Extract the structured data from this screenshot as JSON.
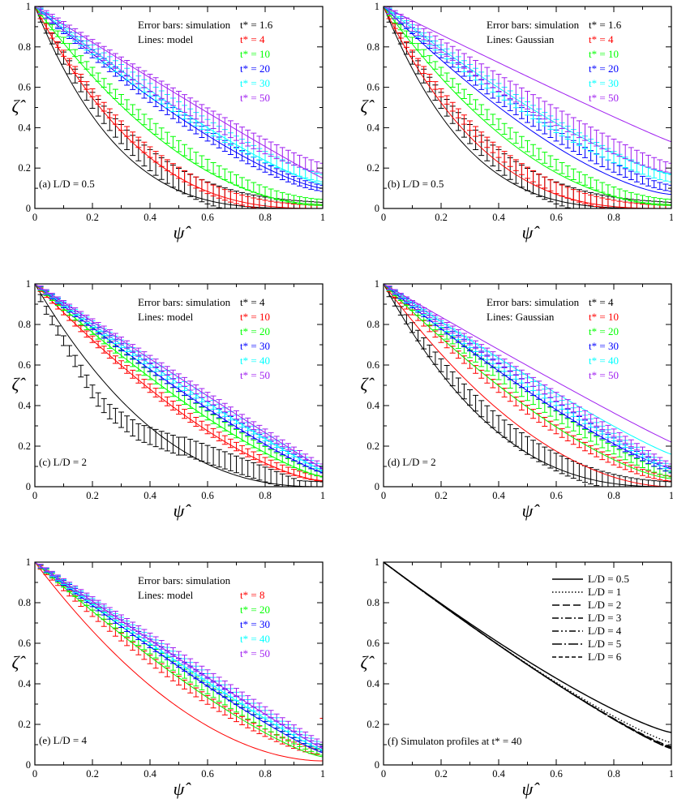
{
  "colors": {
    "black": "#000000",
    "red": "#ff0000",
    "green": "#00ff00",
    "blue": "#0000ff",
    "cyan": "#00ffff",
    "violet": "#a020f0"
  },
  "chart_data": [
    {
      "type": "line",
      "panel_label": "(a) L/D = 0.5",
      "legend_header": [
        "Error bars: simulation",
        "Lines: model"
      ],
      "xlabel": "ψ̂",
      "ylabel": "ζ̂",
      "xlim": [
        0,
        1
      ],
      "ylim": [
        0,
        1
      ],
      "xticks": [
        "0",
        "0.2",
        "0.4",
        "0.6",
        "0.8",
        "1"
      ],
      "yticks": [
        "0",
        "0.2",
        "0.4",
        "0.6",
        "0.8",
        "1"
      ],
      "series": [
        {
          "name": "t* = 1.6",
          "color": "black",
          "line_end": 0.0,
          "line_exp": 3.5,
          "sim_end": 0.0,
          "sim_exp": 2.8,
          "err": 0.05
        },
        {
          "name": "t* = 4",
          "color": "red",
          "line_end": 0.0,
          "line_exp": 2.7,
          "sim_end": 0.0,
          "sim_exp": 2.5,
          "err": 0.025
        },
        {
          "name": "t* = 10",
          "color": "green",
          "line_end": 0.02,
          "line_exp": 1.95,
          "sim_end": 0.03,
          "sim_exp": 1.8,
          "err": 0.025
        },
        {
          "name": "t* = 20",
          "color": "blue",
          "line_end": 0.1,
          "line_exp": 1.35,
          "sim_end": 0.1,
          "sim_exp": 1.35,
          "err": 0.025
        },
        {
          "name": "t* = 30",
          "color": "cyan",
          "line_end": 0.12,
          "line_exp": 1.25,
          "sim_end": 0.15,
          "sim_exp": 1.3,
          "err": 0.03
        },
        {
          "name": "t* = 50",
          "color": "violet",
          "line_end": 0.15,
          "line_exp": 1.05,
          "sim_end": 0.2,
          "sim_exp": 1.25,
          "err": 0.04
        }
      ]
    },
    {
      "type": "line",
      "panel_label": "(b) L/D = 0.5",
      "legend_header": [
        "Error bars: simulation",
        "Lines: Gaussian"
      ],
      "xlabel": "ψ̂",
      "ylabel": "ζ̂",
      "xlim": [
        0,
        1
      ],
      "ylim": [
        0,
        1
      ],
      "xticks": [
        "0",
        "0.2",
        "0.4",
        "0.6",
        "0.8",
        "1"
      ],
      "yticks": [
        "0",
        "0.2",
        "0.4",
        "0.6",
        "0.8",
        "1"
      ],
      "series": [
        {
          "name": "t* = 1.6",
          "color": "black",
          "line_end": 0.0,
          "line_exp": 3.5,
          "sim_end": 0.0,
          "sim_exp": 2.8,
          "err": 0.05
        },
        {
          "name": "t* = 4",
          "color": "red",
          "line_end": 0.0,
          "line_exp": 2.9,
          "sim_end": 0.0,
          "sim_exp": 2.5,
          "err": 0.025
        },
        {
          "name": "t* = 10",
          "color": "green",
          "line_end": 0.02,
          "line_exp": 2.0,
          "sim_end": 0.03,
          "sim_exp": 1.8,
          "err": 0.025
        },
        {
          "name": "t* = 20",
          "color": "blue",
          "line_end": 0.07,
          "line_exp": 1.5,
          "sim_end": 0.1,
          "sim_exp": 1.35,
          "err": 0.025
        },
        {
          "name": "t* = 30",
          "color": "cyan",
          "line_end": 0.17,
          "line_exp": 1.3,
          "sim_end": 0.15,
          "sim_exp": 1.3,
          "err": 0.03
        },
        {
          "name": "t* = 50",
          "color": "violet",
          "line_end": 0.33,
          "line_exp": 1.05,
          "sim_end": 0.2,
          "sim_exp": 1.25,
          "err": 0.04
        }
      ]
    },
    {
      "type": "line",
      "panel_label": "(c) L/D = 2",
      "legend_header": [
        "Error bars: simulation",
        "Lines: model"
      ],
      "xlabel": "ψ̂",
      "ylabel": "ζ̂",
      "xlim": [
        0,
        1
      ],
      "ylim": [
        0,
        1
      ],
      "xticks": [
        "0",
        "0.2",
        "0.4",
        "0.6",
        "0.8",
        "1"
      ],
      "yticks": [
        "0",
        "0.2",
        "0.4",
        "0.6",
        "0.8",
        "1"
      ],
      "series": [
        {
          "name": "t* = 4",
          "color": "black",
          "line_end": 0.0,
          "line_exp": 2.4,
          "sim_end": 0.0,
          "sim_exp": 2.3,
          "err": 0.04,
          "sim_points": [
            [
              0.0,
              1.0
            ],
            [
              0.02,
              0.93
            ],
            [
              0.04,
              0.87
            ],
            [
              0.06,
              0.82
            ],
            [
              0.08,
              0.77
            ],
            [
              0.1,
              0.72
            ],
            [
              0.12,
              0.67
            ],
            [
              0.14,
              0.62
            ],
            [
              0.16,
              0.57
            ],
            [
              0.18,
              0.52
            ],
            [
              0.2,
              0.47
            ],
            [
              0.22,
              0.43
            ],
            [
              0.24,
              0.4
            ],
            [
              0.26,
              0.37
            ],
            [
              0.28,
              0.35
            ],
            [
              0.3,
              0.33
            ],
            [
              0.32,
              0.31
            ],
            [
              0.34,
              0.29
            ],
            [
              0.36,
              0.27
            ],
            [
              0.38,
              0.26
            ],
            [
              0.4,
              0.25
            ],
            [
              0.42,
              0.24
            ],
            [
              0.44,
              0.23
            ],
            [
              0.46,
              0.22
            ],
            [
              0.48,
              0.21
            ],
            [
              0.5,
              0.2
            ],
            [
              0.52,
              0.2
            ],
            [
              0.54,
              0.19
            ],
            [
              0.56,
              0.18
            ],
            [
              0.58,
              0.17
            ],
            [
              0.6,
              0.16
            ],
            [
              0.62,
              0.15
            ],
            [
              0.64,
              0.14
            ],
            [
              0.66,
              0.13
            ],
            [
              0.68,
              0.12
            ],
            [
              0.7,
              0.11
            ],
            [
              0.72,
              0.1
            ],
            [
              0.74,
              0.09
            ],
            [
              0.76,
              0.08
            ],
            [
              0.78,
              0.07
            ],
            [
              0.8,
              0.06
            ],
            [
              0.82,
              0.05
            ],
            [
              0.84,
              0.04
            ],
            [
              0.86,
              0.03
            ],
            [
              0.88,
              0.02
            ],
            [
              0.9,
              0.01
            ],
            [
              0.92,
              0.0
            ],
            [
              0.94,
              0.0
            ],
            [
              0.96,
              0.0
            ],
            [
              0.98,
              0.0
            ],
            [
              1.0,
              0.0
            ]
          ]
        },
        {
          "name": "t* = 10",
          "color": "red",
          "line_end": 0.03,
          "line_exp": 1.5,
          "sim_end": 0.04,
          "sim_exp": 1.5,
          "err": 0.02
        },
        {
          "name": "t* = 20",
          "color": "green",
          "line_end": 0.05,
          "line_exp": 1.3,
          "sim_end": 0.06,
          "sim_exp": 1.28,
          "err": 0.02
        },
        {
          "name": "t* = 30",
          "color": "blue",
          "line_end": 0.07,
          "line_exp": 1.18,
          "sim_end": 0.08,
          "sim_exp": 1.16,
          "err": 0.02
        },
        {
          "name": "t* = 40",
          "color": "cyan",
          "line_end": 0.08,
          "line_exp": 1.1,
          "sim_end": 0.09,
          "sim_exp": 1.1,
          "err": 0.02
        },
        {
          "name": "t* = 50",
          "color": "violet",
          "line_end": 0.09,
          "line_exp": 1.02,
          "sim_end": 0.1,
          "sim_exp": 1.05,
          "err": 0.02
        }
      ]
    },
    {
      "type": "line",
      "panel_label": "(d) L/D = 2",
      "legend_header": [
        "Error bars: simulation",
        "Lines: Gaussian"
      ],
      "xlabel": "ψ̂",
      "ylabel": "ζ̂",
      "xlim": [
        0,
        1
      ],
      "ylim": [
        0,
        1
      ],
      "xticks": [
        "0",
        "0.2",
        "0.4",
        "0.6",
        "0.8",
        "1"
      ],
      "yticks": [
        "0",
        "0.2",
        "0.4",
        "0.6",
        "0.8",
        "1"
      ],
      "series": [
        {
          "name": "t* = 4",
          "color": "black",
          "line_end": 0.0,
          "line_exp": 2.6,
          "sim_end": 0.0,
          "sim_exp": 2.3,
          "err": 0.04
        },
        {
          "name": "t* = 10",
          "color": "red",
          "line_end": 0.0,
          "line_exp": 1.9,
          "sim_end": 0.04,
          "sim_exp": 1.5,
          "err": 0.02
        },
        {
          "name": "t* = 20",
          "color": "green",
          "line_end": 0.04,
          "line_exp": 1.45,
          "sim_end": 0.06,
          "sim_exp": 1.28,
          "err": 0.02
        },
        {
          "name": "t* = 30",
          "color": "blue",
          "line_end": 0.09,
          "line_exp": 1.25,
          "sim_end": 0.08,
          "sim_exp": 1.16,
          "err": 0.02
        },
        {
          "name": "t* = 40",
          "color": "cyan",
          "line_end": 0.16,
          "line_exp": 1.12,
          "sim_end": 0.09,
          "sim_exp": 1.1,
          "err": 0.02
        },
        {
          "name": "t* = 50",
          "color": "violet",
          "line_end": 0.22,
          "line_exp": 1.05,
          "sim_end": 0.1,
          "sim_exp": 1.05,
          "err": 0.02
        }
      ]
    },
    {
      "type": "line",
      "panel_label": "(e) L/D = 4",
      "legend_header": [
        "Error bars: simulation",
        "Lines: model"
      ],
      "xlabel": "ψ̂",
      "ylabel": "ζ̂",
      "xlim": [
        0,
        1
      ],
      "ylim": [
        0,
        1
      ],
      "xticks": [
        "0",
        "0.2",
        "0.4",
        "0.6",
        "0.8",
        "1"
      ],
      "yticks": [
        "0",
        "0.2",
        "0.4",
        "0.6",
        "0.8",
        "1"
      ],
      "series": [
        {
          "name": "t* = 8",
          "color": "red",
          "line_end": 0.02,
          "line_exp": 1.9,
          "sim_end": 0.06,
          "sim_exp": 1.4,
          "err": 0.02,
          "last_err": 0.17
        },
        {
          "name": "t* = 20",
          "color": "green",
          "line_end": 0.04,
          "line_exp": 1.3,
          "sim_end": 0.06,
          "sim_exp": 1.2,
          "err": 0.02
        },
        {
          "name": "t* = 30",
          "color": "blue",
          "line_end": 0.06,
          "line_exp": 1.15,
          "sim_end": 0.08,
          "sim_exp": 1.12,
          "err": 0.02
        },
        {
          "name": "t* = 40",
          "color": "cyan",
          "line_end": 0.07,
          "line_exp": 1.1,
          "sim_end": 0.09,
          "sim_exp": 1.08,
          "err": 0.02
        },
        {
          "name": "t* = 50",
          "color": "violet",
          "line_end": 0.08,
          "line_exp": 1.05,
          "sim_end": 0.1,
          "sim_exp": 1.04,
          "err": 0.02
        }
      ]
    },
    {
      "type": "line",
      "panel_label": "(f) Simulaton profiles at t* = 40",
      "legend_header": [],
      "xlabel": "ψ̂",
      "ylabel": "ζ̂",
      "xlim": [
        0,
        1
      ],
      "ylim": [
        0,
        1
      ],
      "xticks": [
        "0",
        "0.2",
        "0.4",
        "0.6",
        "0.8",
        "1"
      ],
      "yticks": [
        "0",
        "0.2",
        "0.4",
        "0.6",
        "0.8",
        "1"
      ],
      "series": [
        {
          "name": "L/D = 0.5",
          "color": "black",
          "dash": "solid",
          "line_end": 0.16,
          "line_exp": 1.25
        },
        {
          "name": "L/D = 1",
          "color": "black",
          "dash": "dotted",
          "line_end": 0.11,
          "line_exp": 1.2
        },
        {
          "name": "L/D = 2",
          "color": "black",
          "dash": "dashed",
          "line_end": 0.09,
          "line_exp": 1.17
        },
        {
          "name": "L/D = 3",
          "color": "black",
          "dash": "dashdot",
          "line_end": 0.085,
          "line_exp": 1.16
        },
        {
          "name": "L/D = 4",
          "color": "black",
          "dash": "dashdotdot",
          "line_end": 0.085,
          "line_exp": 1.16
        },
        {
          "name": "L/D = 5",
          "color": "black",
          "dash": "longdashdot",
          "line_end": 0.08,
          "line_exp": 1.15
        },
        {
          "name": "L/D = 6",
          "color": "black",
          "dash": "shortdash",
          "line_end": 0.08,
          "line_exp": 1.15
        }
      ]
    }
  ]
}
